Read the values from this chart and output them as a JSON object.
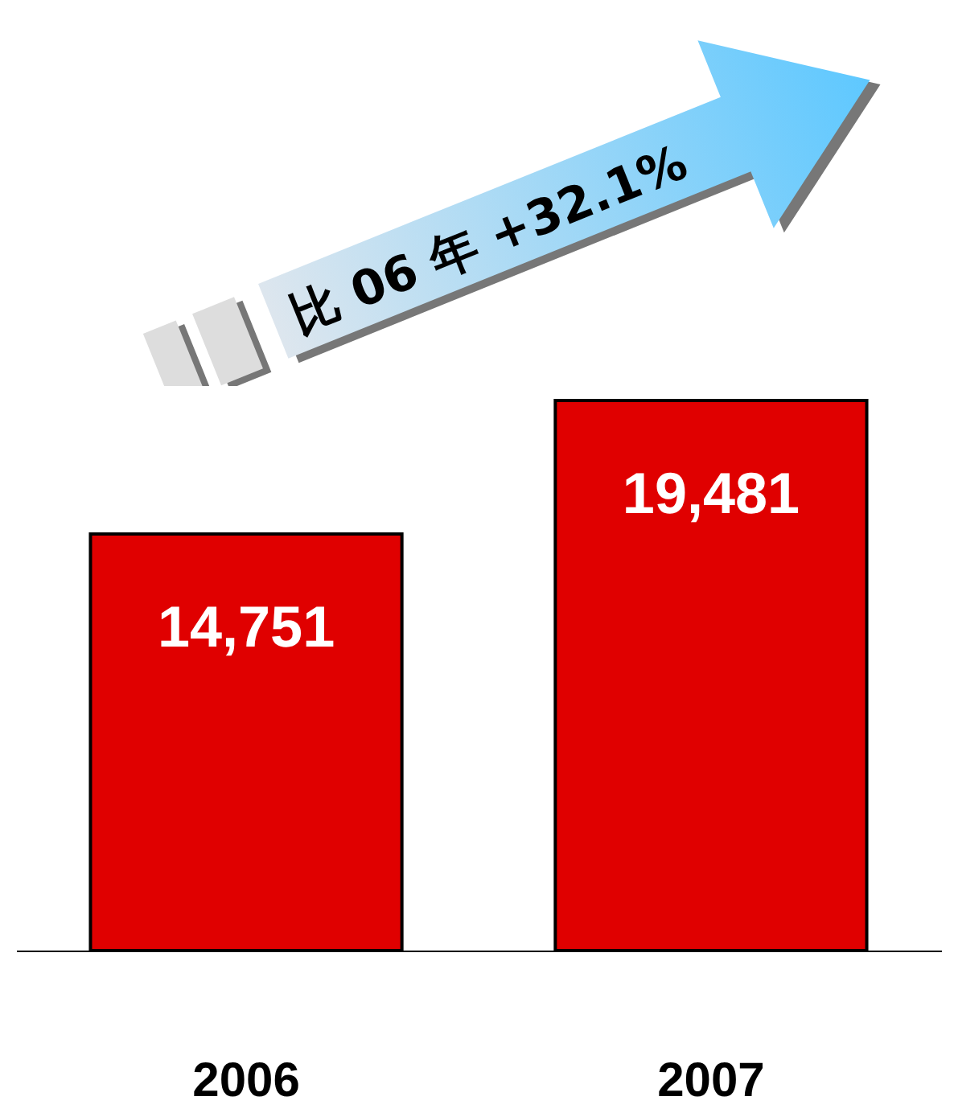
{
  "chart_data": {
    "type": "bar",
    "categories": [
      "2006",
      "2007"
    ],
    "values": [
      14751,
      19481
    ],
    "color": "#e00000",
    "value_labels": [
      "14,751",
      "19,481"
    ],
    "annotations": [
      "比 06 年 +32.1%"
    ]
  }
}
